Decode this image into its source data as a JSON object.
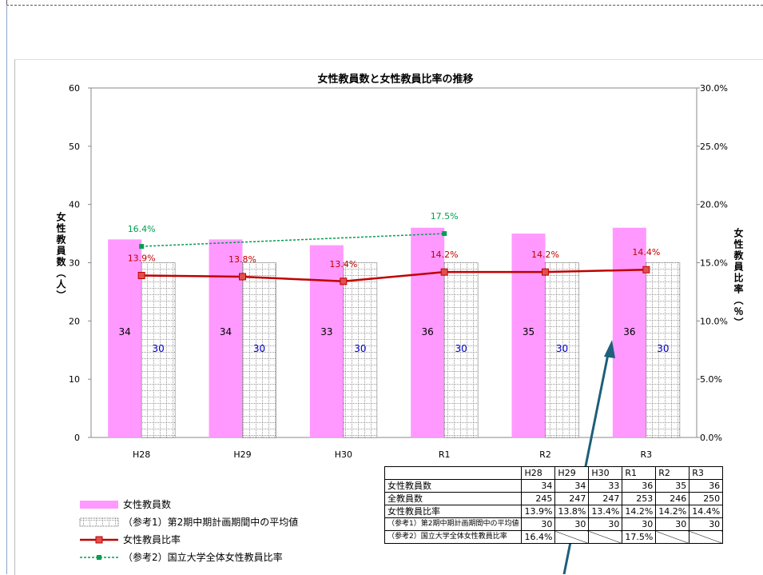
{
  "chart_data": {
    "type": "bar",
    "title": "女性教員数と女性教員比率の推移",
    "categories": [
      "H28",
      "H29",
      "H30",
      "R1",
      "R2",
      "R3"
    ],
    "ylabel": "女性教員数（人）",
    "ylabel_right": "女性教員比率（％）",
    "ylim": [
      0,
      60
    ],
    "yticks": [
      "0",
      "10",
      "20",
      "30",
      "40",
      "50",
      "60"
    ],
    "y2lim": [
      0,
      30
    ],
    "y2ticks": [
      "0.0%",
      "5.0%",
      "10.0%",
      "15.0%",
      "20.0%",
      "25.0%",
      "30.0%"
    ],
    "series": [
      {
        "name": "女性教員数",
        "kind": "bar",
        "color": "#ff99ff",
        "values": [
          34,
          34,
          33,
          36,
          35,
          36
        ],
        "labels": [
          "34",
          "34",
          "33",
          "36",
          "35",
          "36"
        ]
      },
      {
        "name": "（参考1）第2期中期計画期間中の平均値",
        "kind": "bar",
        "pattern": "dotted-grid",
        "values": [
          30,
          30,
          30,
          30,
          30,
          30
        ],
        "labels": [
          "30",
          "30",
          "30",
          "30",
          "30",
          "30"
        ],
        "label_color": "#0000cc"
      },
      {
        "name": "女性教員比率",
        "kind": "line",
        "axis": "right",
        "color": "#c00000",
        "values": [
          13.9,
          13.8,
          13.4,
          14.2,
          14.2,
          14.4
        ],
        "labels": [
          "13.9%",
          "13.8%",
          "13.4%",
          "14.2%",
          "14.2%",
          "14.4%"
        ]
      },
      {
        "name": "（参考2）国立大学全体女性教員比率",
        "kind": "line",
        "axis": "right",
        "dashed": true,
        "color": "#00a050",
        "values": [
          16.4,
          null,
          null,
          17.5,
          null,
          null
        ],
        "labels": [
          "16.4%",
          "",
          "",
          "17.5%",
          "",
          ""
        ]
      }
    ],
    "grid": false,
    "legend_position": "bottom-left",
    "table": {
      "header": [
        "H28",
        "H29",
        "H30",
        "R1",
        "R2",
        "R3"
      ],
      "rows": [
        {
          "label": "女性教員数",
          "values": [
            "34",
            "34",
            "33",
            "36",
            "35",
            "36"
          ]
        },
        {
          "label": "全教員数",
          "values": [
            "245",
            "247",
            "247",
            "253",
            "246",
            "250"
          ]
        },
        {
          "label": "女性教員比率",
          "values": [
            "13.9%",
            "13.8%",
            "13.4%",
            "14.2%",
            "14.2%",
            "14.4%"
          ]
        },
        {
          "label": "（参考1）第2期中期計画期間中の平均値",
          "values": [
            "30",
            "30",
            "30",
            "30",
            "30",
            "30"
          ]
        },
        {
          "label": "（参考2）国立大学全体女性教員比率",
          "values": [
            "16.4%",
            "",
            "",
            "17.5%",
            "",
            ""
          ]
        }
      ]
    }
  }
}
